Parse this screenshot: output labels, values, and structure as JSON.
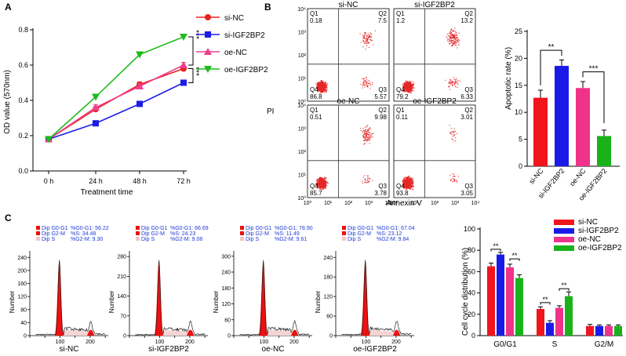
{
  "panels": {
    "a": "A",
    "b": "B",
    "c": "C"
  },
  "significance": "**",
  "significance_strong": "***",
  "chart_data": [
    {
      "id": "growth",
      "type": "line",
      "x": [
        "0 h",
        "24 h",
        "48 h",
        "72 h"
      ],
      "xlabel": "Treatment time",
      "ylabel": "OD value (570nm)",
      "ylim": [
        0,
        0.8
      ],
      "yticks": [
        "0.0",
        "0.2",
        "0.4",
        "0.6",
        "0.8"
      ],
      "legend_position": "top-right",
      "series": [
        {
          "name": "si-NC",
          "color": "#e8221f",
          "marker": "circle",
          "values": [
            0.18,
            0.35,
            0.49,
            0.58
          ],
          "err": [
            0.01,
            0.015,
            0.015,
            0.015
          ]
        },
        {
          "name": "si-IGF2BP2",
          "color": "#1c1ce6",
          "marker": "square",
          "values": [
            0.18,
            0.27,
            0.38,
            0.5
          ],
          "err": [
            0.01,
            0.012,
            0.012,
            0.012
          ]
        },
        {
          "name": "oe-NC",
          "color": "#ee3f8e",
          "marker": "triangle-up",
          "values": [
            0.18,
            0.36,
            0.48,
            0.6
          ],
          "err": [
            0.01,
            0.015,
            0.015,
            0.015
          ]
        },
        {
          "name": "oe-IGF2BP2",
          "color": "#1dbb1d",
          "marker": "triangle-down",
          "values": [
            0.18,
            0.42,
            0.66,
            0.76
          ],
          "err": [
            0.01,
            0.012,
            0.012,
            0.012
          ]
        }
      ],
      "annotations": [
        "***",
        "***"
      ]
    },
    {
      "id": "flow",
      "type": "scatter",
      "xlabel": "Annexin V",
      "ylabel": "PI",
      "axis_ticks": [
        "10⁰",
        "10¹",
        "10²",
        "10³",
        "10⁴"
      ],
      "quadrant_labels": [
        "Q1",
        "Q2",
        "Q3",
        "Q4"
      ],
      "plots": [
        {
          "title": "si-NC",
          "q1": "0.18",
          "q2": "7.5",
          "q3": "5.57",
          "q4": "86.8"
        },
        {
          "title": "si-IGF2BP2",
          "q1": "1.2",
          "q2": "13.2",
          "q3": "6.33",
          "q4": "79.2"
        },
        {
          "title": "oe-NC",
          "q1": "0.51",
          "q2": "9.98",
          "q3": "3.78",
          "q4": "85.7"
        },
        {
          "title": "oe-IGF2BP2",
          "q1": "0.11",
          "q2": "3.01",
          "q3": "3.05",
          "q4": "93.8"
        }
      ]
    },
    {
      "id": "apoptosis",
      "type": "bar",
      "categories": [
        "si-NC",
        "si-IGF2BP2",
        "oe-NC",
        "oe-IGF2BP2"
      ],
      "values": [
        12.7,
        18.6,
        14.5,
        5.6
      ],
      "err": [
        1.4,
        1.1,
        1.2,
        1.1
      ],
      "colors": [
        "#f2141b",
        "#1a1ae8",
        "#f0338a",
        "#19b319"
      ],
      "ylabel": "Apoptotic rate (%)",
      "ylim": [
        0,
        25
      ],
      "yticks": [
        "0",
        "5",
        "10",
        "15",
        "20",
        "25"
      ]
    },
    {
      "id": "histograms",
      "type": "area",
      "xlabel_ticks": [
        "0",
        "50",
        "100",
        "150",
        "200",
        "250"
      ],
      "ylabel": "Number",
      "legend_keys": [
        "Dip G0-G1",
        "Dip G2-M",
        "Dip S"
      ],
      "plots": [
        {
          "title": "si-NC",
          "stats": [
            "%G0-G1: 56.22",
            "%S: 34.48",
            "%G2-M: 9.30"
          ],
          "yticks": [
            "0",
            "40",
            "80",
            "120",
            "160",
            "200",
            "240"
          ],
          "ymax": 260
        },
        {
          "title": "si-IGF2BP2",
          "stats": [
            "%G0-G1: 66.69",
            "%S: 24.23",
            "%G2-M: 9.08"
          ],
          "yticks": [
            "0",
            "70",
            "140",
            "210",
            "280"
          ],
          "ymax": 300
        },
        {
          "title": "oe-NC",
          "stats": [
            "%G0-G1: 78.90",
            "%S: 11.49",
            "%G2-M: 9.61"
          ],
          "yticks": [
            "0",
            "60",
            "120",
            "180",
            "240",
            "300"
          ],
          "ymax": 320
        },
        {
          "title": "oe-IGF2BP2",
          "stats": [
            "%G0-G1: 67.04",
            "%S: 23.12",
            "%G2-M: 9.84"
          ],
          "yticks": [
            "0",
            "60",
            "120",
            "180",
            "240"
          ],
          "ymax": 260
        }
      ]
    },
    {
      "id": "cellcycle",
      "type": "bar",
      "categories": [
        "G0/G1",
        "S",
        "G2/M"
      ],
      "ylabel": "Cell cycle distribution (%)",
      "ylim": [
        0,
        100
      ],
      "yticks": [
        "0",
        "20",
        "40",
        "60",
        "80",
        "100"
      ],
      "legend_position": "top-right",
      "series": [
        {
          "name": "si-NC",
          "color": "#f2141b",
          "values": [
            65,
            25,
            9
          ],
          "err": [
            3,
            2,
            1.5
          ]
        },
        {
          "name": "si-IGF2BP2",
          "color": "#1a1ae8",
          "values": [
            76,
            12,
            9
          ],
          "err": [
            2,
            2,
            1
          ]
        },
        {
          "name": "oe-NC",
          "color": "#f0338a",
          "values": [
            64,
            26,
            9
          ],
          "err": [
            3,
            2,
            1
          ]
        },
        {
          "name": "oe-IGF2BP2",
          "color": "#19b319",
          "values": [
            54,
            37,
            9
          ],
          "err": [
            3,
            4,
            1
          ]
        }
      ]
    }
  ]
}
